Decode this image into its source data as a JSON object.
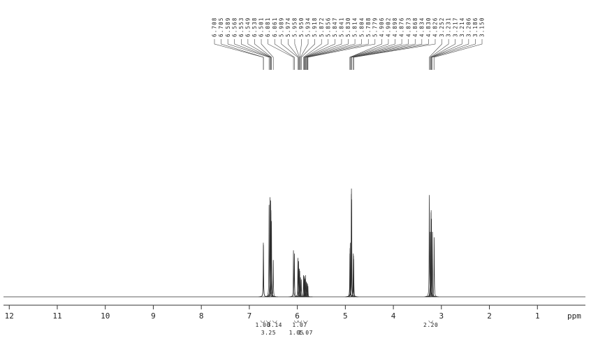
{
  "chart_data": {
    "type": "nmr",
    "x": [
      6.708,
      6.705,
      6.589,
      6.568,
      6.553,
      6.549,
      6.538,
      6.501,
      6.081,
      6.061,
      5.989,
      5.974,
      5.958,
      5.95,
      5.934,
      5.918,
      5.872,
      5.856,
      5.847,
      5.841,
      5.83,
      5.814,
      5.804,
      5.788,
      5.779,
      4.906,
      4.902,
      4.898,
      4.876,
      4.873,
      4.868,
      4.834,
      4.83,
      4.826,
      3.252,
      3.231,
      3.217,
      3.214,
      3.206,
      3.186,
      3.15
    ],
    "x_labels": [
      "6.708",
      "6.705",
      "6.589",
      "6.568",
      "6.553",
      "6.549",
      "6.538",
      "6.501",
      "6.081",
      "6.061",
      "5.989",
      "5.974",
      "5.958",
      "5.950",
      "5.934",
      "5.918",
      "5.872",
      "5.856",
      "5.847",
      "5.841",
      "5.830",
      "5.814",
      "5.804",
      "5.788",
      "5.779",
      "4.906",
      "4.902",
      "4.898",
      "4.876",
      "4.873",
      "4.868",
      "4.834",
      "4.830",
      "4.826",
      "3.252",
      "3.231",
      "3.217",
      "3.214",
      "3.206",
      "3.186",
      "3.150"
    ],
    "values": [
      50,
      48,
      85,
      92,
      89,
      80,
      70,
      34,
      43,
      40,
      36,
      33,
      26,
      24,
      18,
      16,
      20,
      19,
      17,
      16,
      20,
      14,
      13,
      12,
      10,
      40,
      45,
      50,
      95,
      100,
      90,
      40,
      38,
      35,
      94,
      60,
      78,
      80,
      72,
      60,
      55
    ],
    "integrals": {
      "x": [
        6.72,
        6.6,
        6.47,
        5.95,
        6.02,
        5.83,
        3.22
      ],
      "values": [
        1.0,
        3.25,
        3.14,
        1.07,
        1.05,
        1.07,
        2.2
      ],
      "value_labels": [
        "1.00",
        "3.25",
        "3.14",
        "1.07",
        "1.05",
        "1.07",
        "2.20"
      ]
    },
    "xlim": [
      12.12,
      0
    ],
    "xticks": [
      12,
      11,
      10,
      9,
      8,
      7,
      6,
      5,
      4,
      3,
      2,
      1
    ],
    "xlabel": "ppm",
    "color": "#2b2b2b"
  }
}
